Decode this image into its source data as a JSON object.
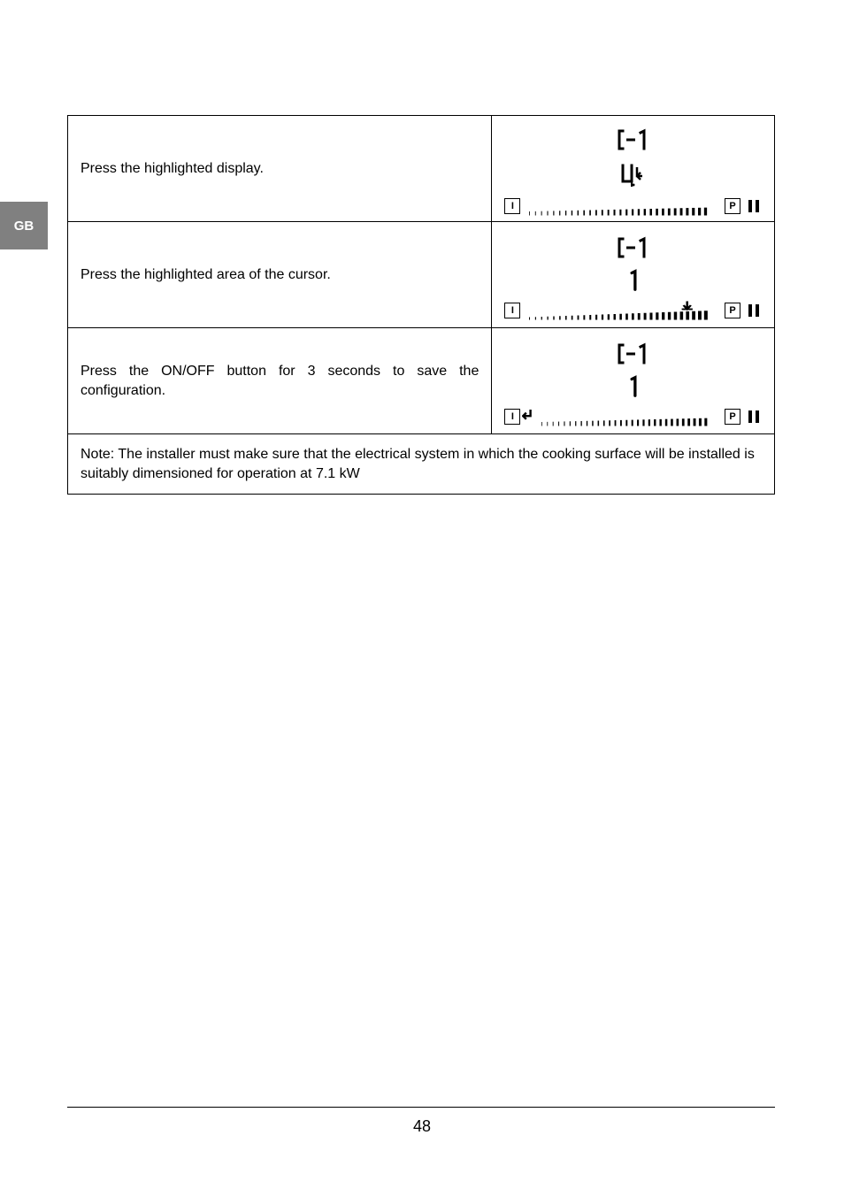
{
  "side_tab": "GB",
  "page_number": "48",
  "rows": [
    {
      "desc": "Press the highlighted display.",
      "display": {
        "top_glyph": "C1",
        "mid_glyph": "0_enter",
        "slider_variant": "thin_to_thick",
        "i_arrow": false,
        "slider_arrow": false
      }
    },
    {
      "desc": "Press the highlighted area of the cursor.",
      "display": {
        "top_glyph": "C1",
        "mid_glyph": "1",
        "slider_variant": "growing",
        "i_arrow": false,
        "slider_arrow": true
      }
    },
    {
      "desc": "Press the ON/OFF button for 3 seconds to save the configuration.",
      "display": {
        "top_glyph": "C1",
        "mid_glyph": "1",
        "slider_variant": "thin_to_thick",
        "i_arrow": true,
        "slider_arrow": false
      }
    }
  ],
  "note": "Note: The installer must make sure that the electrical system in which the cooking surface will be installed is suitably dimensioned for operation at 7.1 kW",
  "colors": {
    "tab_bg": "#808080",
    "tab_fg": "#ffffff",
    "text": "#000000",
    "border": "#000000",
    "page_bg": "#ffffff"
  }
}
